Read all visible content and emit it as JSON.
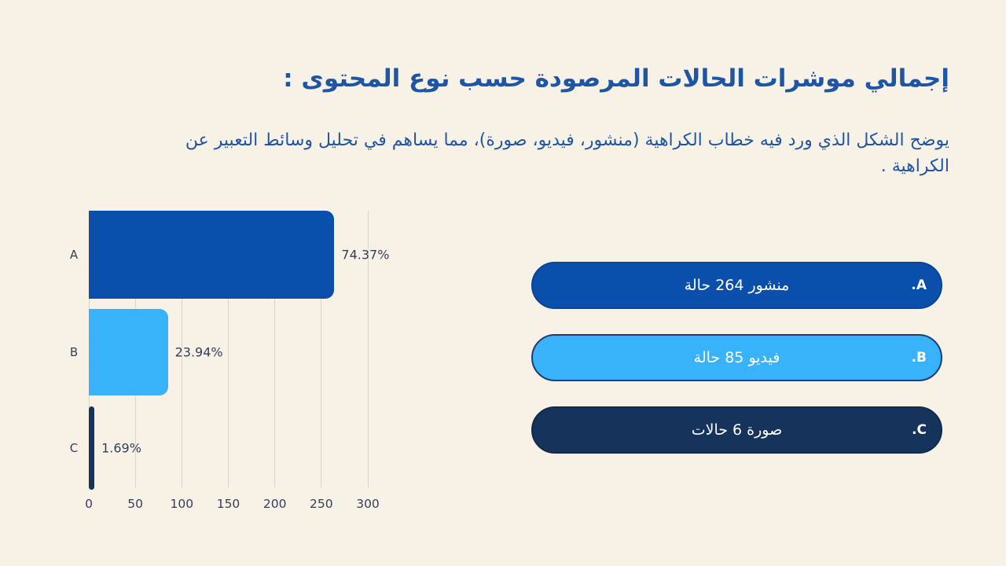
{
  "title": "إجمالي موشرات الحالات المرصودة حسب نوع المحتوى :",
  "subtitle": "يوضح الشكل الذي ورد فيه خطاب الكراهية (منشور، فيديو، صورة)، مما يساهم في تحليل وسائط التعبير عن الكراهية .",
  "colors": {
    "background": "#f8f2e6",
    "heading_blue": "#1e56a5",
    "axis_text": "#333f58",
    "gridline": "#dbd5c7"
  },
  "chart_data": {
    "type": "bar",
    "orientation": "horizontal",
    "categories": [
      "A",
      "B",
      "C"
    ],
    "values": [
      264,
      85,
      6
    ],
    "value_labels": [
      "74.37%",
      "23.94%",
      "1.69%"
    ],
    "bar_colors": [
      "#0a4fab",
      "#38b2fa",
      "#16335c"
    ],
    "xticks": [
      0,
      50,
      100,
      150,
      200,
      250,
      300
    ],
    "xlim": [
      0,
      300
    ],
    "grid": true,
    "xlabel": "",
    "ylabel": "",
    "legend_position": "right"
  },
  "legend": {
    "items": [
      {
        "letter": ".A",
        "label": "منشور 264 حالة",
        "color": "#0a4fab",
        "border_color": "#0a4496",
        "text_color": "#ffffff"
      },
      {
        "letter": ".B",
        "label": "فيديو 85 حالة",
        "color": "#38b2fa",
        "border_color": "#1e3c6e",
        "text_color": "#ffffff"
      },
      {
        "letter": ".C",
        "label": "صورة 6 حالات",
        "color": "#16335c",
        "border_color": "#122a4d",
        "text_color": "#ffffff"
      }
    ]
  }
}
